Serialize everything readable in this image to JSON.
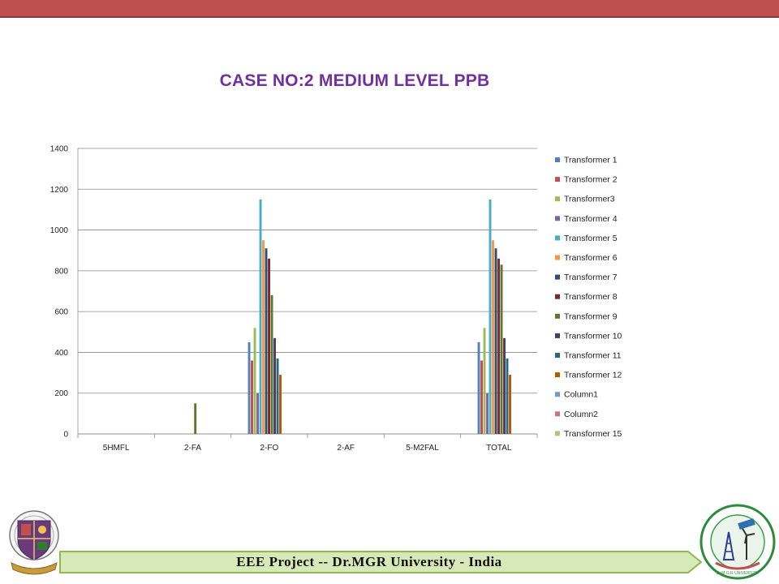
{
  "slide": {
    "title": "CASE NO:2 MEDIUM LEVEL PPB",
    "footer": "EEE Project -- Dr.MGR University - India",
    "right_logo_text": "Dr.M.G.R UNIVERSITY"
  },
  "colors": {
    "top_bar": "#c0504d",
    "title": "#7030a0",
    "footer_banner": "#d7e9b8",
    "footer_border": "#8fb84d"
  },
  "chart_data": {
    "type": "bar",
    "title": "CASE NO:2 MEDIUM LEVEL PPB",
    "xlabel": "",
    "ylabel": "",
    "ylim": [
      0,
      1400
    ],
    "yticks": [
      0,
      200,
      400,
      600,
      800,
      1000,
      1200,
      1400
    ],
    "grid": true,
    "legend_position": "right",
    "categories": [
      "5HMFL",
      "2-FA",
      "2-FO",
      "2-AF",
      "5-M2FAL",
      "TOTAL"
    ],
    "series": [
      {
        "name": "Transformer 1",
        "color": "#4f81bd",
        "values": [
          0,
          0,
          450,
          0,
          0,
          450
        ]
      },
      {
        "name": "Transformer 2",
        "color": "#c0504d",
        "values": [
          0,
          0,
          360,
          0,
          0,
          360
        ]
      },
      {
        "name": "Transformer3",
        "color": "#9bbb59",
        "values": [
          0,
          0,
          520,
          0,
          0,
          520
        ]
      },
      {
        "name": "Transformer 4",
        "color": "#8064a2",
        "values": [
          0,
          0,
          200,
          0,
          0,
          200
        ]
      },
      {
        "name": "Transformer 5",
        "color": "#4bacc6",
        "values": [
          0,
          0,
          1150,
          0,
          0,
          1150
        ]
      },
      {
        "name": "Transformer 6",
        "color": "#f79646",
        "values": [
          0,
          0,
          950,
          0,
          0,
          950
        ]
      },
      {
        "name": "Transformer 7",
        "color": "#2c4d75",
        "values": [
          0,
          0,
          910,
          0,
          0,
          910
        ]
      },
      {
        "name": "Transformer 8",
        "color": "#772c2a",
        "values": [
          0,
          0,
          860,
          0,
          0,
          860
        ]
      },
      {
        "name": "Transformer 9",
        "color": "#5f7530",
        "values": [
          0,
          150,
          680,
          0,
          0,
          830
        ]
      },
      {
        "name": "Transformer 10",
        "color": "#4d3b62",
        "values": [
          0,
          0,
          470,
          0,
          0,
          470
        ]
      },
      {
        "name": "Transformer 11",
        "color": "#276a7c",
        "values": [
          0,
          0,
          370,
          0,
          0,
          370
        ]
      },
      {
        "name": "Transformer 12",
        "color": "#b65708",
        "values": [
          0,
          0,
          290,
          0,
          0,
          290
        ]
      },
      {
        "name": "Column1",
        "color": "#729aca",
        "values": [
          0,
          0,
          0,
          0,
          0,
          0
        ]
      },
      {
        "name": "Column2",
        "color": "#cd7371",
        "values": [
          0,
          0,
          0,
          0,
          0,
          0
        ]
      },
      {
        "name": "Transformer 15",
        "color": "#afc97a",
        "values": [
          0,
          0,
          0,
          0,
          0,
          0
        ]
      }
    ]
  }
}
